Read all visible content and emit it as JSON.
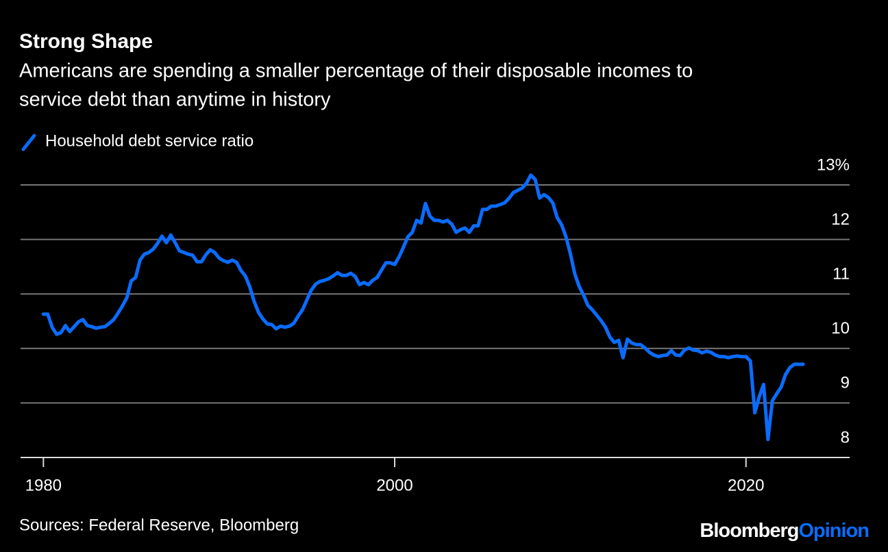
{
  "chart_data": {
    "type": "line",
    "title": "Strong Shape",
    "subtitle_lines": [
      "Americans are spending a smaller percentage of their disposable incomes to",
      "service debt than anytime in history"
    ],
    "source": "Sources: Federal Reserve, Bloomberg",
    "logo": [
      "Bloomberg",
      "Opinion"
    ],
    "x": [
      1980,
      1980.25,
      1980.5,
      1980.75,
      1981,
      1981.25,
      1981.5,
      1981.75,
      1982,
      1982.25,
      1982.5,
      1982.75,
      1983,
      1983.25,
      1983.5,
      1983.75,
      1984,
      1984.25,
      1984.5,
      1984.75,
      1985,
      1985.25,
      1985.5,
      1985.75,
      1986,
      1986.25,
      1986.5,
      1986.75,
      1987,
      1987.25,
      1987.5,
      1987.75,
      1988,
      1988.25,
      1988.5,
      1988.75,
      1989,
      1989.25,
      1989.5,
      1989.75,
      1990,
      1990.25,
      1990.5,
      1990.75,
      1991,
      1991.25,
      1991.5,
      1991.75,
      1992,
      1992.25,
      1992.5,
      1992.75,
      1993,
      1993.25,
      1993.5,
      1993.75,
      1994,
      1994.25,
      1994.5,
      1994.75,
      1995,
      1995.25,
      1995.5,
      1995.75,
      1996,
      1996.25,
      1996.5,
      1996.75,
      1997,
      1997.25,
      1997.5,
      1997.75,
      1998,
      1998.25,
      1998.5,
      1998.75,
      1999,
      1999.25,
      1999.5,
      1999.75,
      2000,
      2000.25,
      2000.5,
      2000.75,
      2001,
      2001.25,
      2001.5,
      2001.75,
      2002,
      2002.25,
      2002.5,
      2002.75,
      2003,
      2003.25,
      2003.5,
      2003.75,
      2004,
      2004.25,
      2004.5,
      2004.75,
      2005,
      2005.25,
      2005.5,
      2005.75,
      2006,
      2006.25,
      2006.5,
      2006.75,
      2007,
      2007.25,
      2007.5,
      2007.75,
      2008,
      2008.25,
      2008.5,
      2008.75,
      2009,
      2009.25,
      2009.5,
      2009.75,
      2010,
      2010.25,
      2010.5,
      2010.75,
      2011,
      2011.25,
      2011.5,
      2011.75,
      2012,
      2012.25,
      2012.5,
      2012.75,
      2013,
      2013.25,
      2013.5,
      2013.75,
      2014,
      2014.25,
      2014.5,
      2014.75,
      2015,
      2015.25,
      2015.5,
      2015.75,
      2016,
      2016.25,
      2016.5,
      2016.75,
      2017,
      2017.25,
      2017.5,
      2017.75,
      2018,
      2018.25,
      2018.5,
      2018.75,
      2019,
      2019.25,
      2019.5,
      2019.75,
      2020,
      2020.25,
      2020.5,
      2020.75,
      2021,
      2021.25,
      2021.5,
      2021.75,
      2022,
      2022.25,
      2022.5,
      2022.75,
      2023,
      2023.25
    ],
    "series": [
      {
        "name": "Household debt service ratio",
        "color": "#0a6cff",
        "values": [
          10.63,
          10.63,
          10.39,
          10.26,
          10.29,
          10.42,
          10.31,
          10.4,
          10.49,
          10.53,
          10.42,
          10.4,
          10.37,
          10.39,
          10.4,
          10.46,
          10.53,
          10.65,
          10.78,
          10.93,
          11.24,
          11.3,
          11.62,
          11.73,
          11.76,
          11.82,
          11.93,
          12.06,
          11.94,
          12.08,
          11.94,
          11.79,
          11.76,
          11.73,
          11.71,
          11.59,
          11.59,
          11.72,
          11.81,
          11.76,
          11.66,
          11.61,
          11.58,
          11.62,
          11.58,
          11.43,
          11.33,
          11.13,
          10.86,
          10.66,
          10.54,
          10.45,
          10.44,
          10.36,
          10.41,
          10.39,
          10.41,
          10.46,
          10.59,
          10.71,
          10.89,
          11.07,
          11.18,
          11.23,
          11.25,
          11.28,
          11.33,
          11.39,
          11.34,
          11.34,
          11.38,
          11.32,
          11.17,
          11.21,
          11.17,
          11.25,
          11.3,
          11.44,
          11.57,
          11.57,
          11.54,
          11.68,
          11.86,
          12.05,
          12.13,
          12.35,
          12.3,
          12.66,
          12.43,
          12.35,
          12.35,
          12.32,
          12.35,
          12.28,
          12.13,
          12.18,
          12.21,
          12.13,
          12.25,
          12.25,
          12.55,
          12.55,
          12.61,
          12.61,
          12.64,
          12.67,
          12.75,
          12.86,
          12.9,
          12.94,
          13.03,
          13.18,
          13.1,
          12.76,
          12.82,
          12.77,
          12.67,
          12.4,
          12.27,
          12.05,
          11.74,
          11.37,
          11.14,
          10.98,
          10.79,
          10.71,
          10.61,
          10.51,
          10.39,
          10.21,
          10.11,
          10.15,
          9.83,
          10.17,
          10.1,
          10.07,
          10.07,
          10.01,
          9.93,
          9.88,
          9.85,
          9.87,
          9.88,
          9.96,
          9.88,
          9.87,
          9.97,
          10.01,
          9.97,
          9.96,
          9.92,
          9.95,
          9.93,
          9.88,
          9.85,
          9.85,
          9.83,
          9.85,
          9.86,
          9.85,
          9.85,
          9.77,
          8.82,
          9.11,
          9.34,
          8.33,
          9.04,
          9.17,
          9.29,
          9.52,
          9.65,
          9.71,
          9.71,
          9.71
        ]
      }
    ],
    "xlim": [
      1978.7,
      2025.9
    ],
    "xticks": [
      1980,
      2000,
      2020
    ],
    "ylim": [
      8,
      13
    ],
    "yticks": [
      8,
      9,
      10,
      11,
      12,
      {
        "value": 13,
        "label": "13%"
      }
    ],
    "grid": true
  }
}
